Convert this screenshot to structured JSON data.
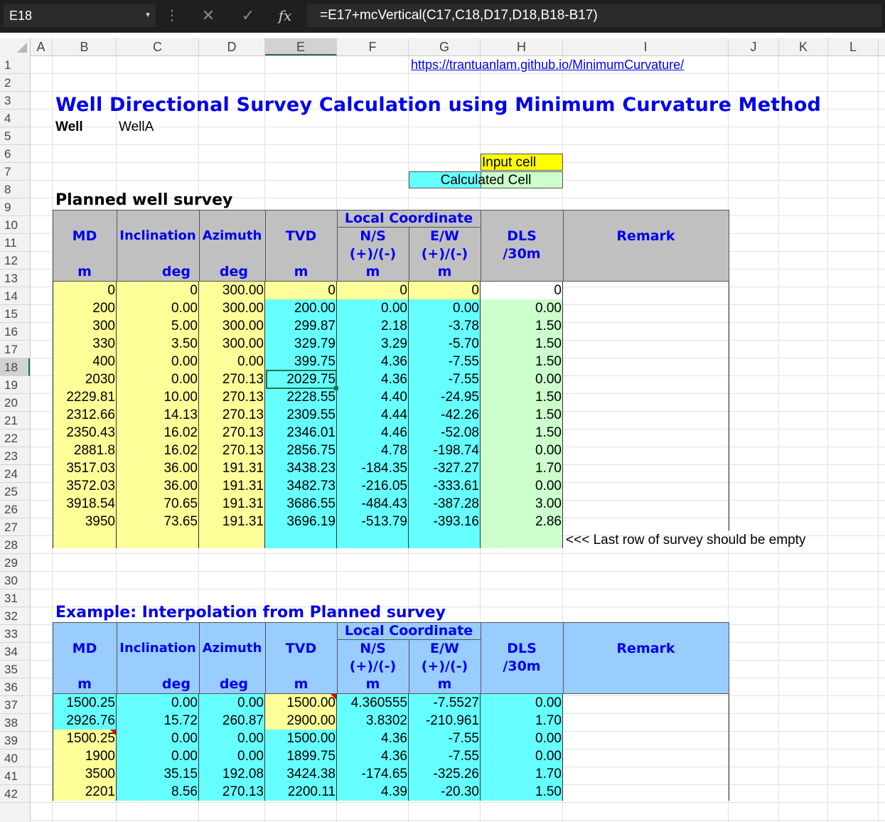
{
  "formula_bar": {
    "name_box": "E18",
    "formula": "=E17+mcVertical(C17,C18,D17,D18,B18-B17)",
    "cancel_icon": "✕",
    "enter_icon": "✓",
    "fx_label": "fx"
  },
  "columns": [
    "A",
    "B",
    "C",
    "D",
    "E",
    "F",
    "G",
    "H",
    "I",
    "J",
    "K",
    "L"
  ],
  "rows": [
    "1",
    "2",
    "3",
    "4",
    "5",
    "6",
    "7",
    "8",
    "9",
    "10",
    "11",
    "12",
    "13",
    "14",
    "15",
    "16",
    "17",
    "18",
    "19",
    "20",
    "21",
    "22",
    "23",
    "24",
    "25",
    "26",
    "27",
    "28",
    "29",
    "30",
    "31",
    "32",
    "33",
    "34",
    "35",
    "36",
    "37",
    "38",
    "39",
    "40",
    "41",
    "42"
  ],
  "link": "https://trantuanlam.github.io/MinimumCurvature/",
  "title": "Well Directional Survey Calculation using Minimum Curvature Method",
  "well": {
    "label": "Well",
    "value": "WellA"
  },
  "legend": {
    "input": "Input cell",
    "calculated": "Calculated Cell"
  },
  "planned": {
    "heading": "Planned well survey",
    "headers": {
      "md": "MD",
      "inc": "Inclination",
      "azi": "Azimuth",
      "tvd": "TVD",
      "local": "Local Coordinate",
      "ns": "N/S",
      "ns_sign": "(+)/(-)",
      "ew": "E/W",
      "ew_sign": "(+)/(-)",
      "dls": "DLS",
      "dls_unit": "/30m",
      "remark": "Remark",
      "u_md": "m",
      "u_inc": "deg",
      "u_azi": "deg",
      "u_tvd": "m",
      "u_ns": "m",
      "u_ew": "m"
    },
    "rows": [
      [
        "0",
        "0",
        "300.00",
        "0",
        "0",
        "0",
        "0"
      ],
      [
        "200",
        "0.00",
        "300.00",
        "200.00",
        "0.00",
        "0.00",
        "0.00"
      ],
      [
        "300",
        "5.00",
        "300.00",
        "299.87",
        "2.18",
        "-3.78",
        "1.50"
      ],
      [
        "330",
        "3.50",
        "300.00",
        "329.79",
        "3.29",
        "-5.70",
        "1.50"
      ],
      [
        "400",
        "0.00",
        "0.00",
        "399.75",
        "4.36",
        "-7.55",
        "1.50"
      ],
      [
        "2030",
        "0.00",
        "270.13",
        "2029.75",
        "4.36",
        "-7.55",
        "0.00"
      ],
      [
        "2229.81",
        "10.00",
        "270.13",
        "2228.55",
        "4.40",
        "-24.95",
        "1.50"
      ],
      [
        "2312.66",
        "14.13",
        "270.13",
        "2309.55",
        "4.44",
        "-42.26",
        "1.50"
      ],
      [
        "2350.43",
        "16.02",
        "270.13",
        "2346.01",
        "4.46",
        "-52.08",
        "1.50"
      ],
      [
        "2881.8",
        "16.02",
        "270.13",
        "2856.75",
        "4.78",
        "-198.74",
        "0.00"
      ],
      [
        "3517.03",
        "36.00",
        "191.31",
        "3438.23",
        "-184.35",
        "-327.27",
        "1.70"
      ],
      [
        "3572.03",
        "36.00",
        "191.31",
        "3482.73",
        "-216.05",
        "-333.61",
        "0.00"
      ],
      [
        "3918.54",
        "70.65",
        "191.31",
        "3686.55",
        "-484.43",
        "-387.28",
        "3.00"
      ],
      [
        "3950",
        "73.65",
        "191.31",
        "3696.19",
        "-513.79",
        "-393.16",
        "2.86"
      ]
    ],
    "note": "<<< Last row of survey should be empty"
  },
  "example": {
    "heading": "Example: Interpolation from Planned survey",
    "rows": [
      [
        "1500.25",
        "0.00",
        "0.00",
        "1500.00",
        "4.360555",
        "-7.5527",
        "0.00"
      ],
      [
        "2926.76",
        "15.72",
        "260.87",
        "2900.00",
        "3.8302",
        "-210.961",
        "1.70"
      ],
      [
        "1500.25",
        "0.00",
        "0.00",
        "1500.00",
        "4.36",
        "-7.55",
        "0.00"
      ],
      [
        "1900",
        "0.00",
        "0.00",
        "1899.75",
        "4.36",
        "-7.55",
        "0.00"
      ],
      [
        "3500",
        "35.15",
        "192.08",
        "3424.38",
        "-174.65",
        "-325.26",
        "1.70"
      ],
      [
        "2201",
        "8.56",
        "270.13",
        "2200.11",
        "4.39",
        "-20.30",
        "1.50"
      ]
    ]
  },
  "colors": {
    "input": "#ffff99",
    "calculated": "#66ffff",
    "dls": "#ccffcc",
    "header_grey": "#c0c0c0",
    "header_blue": "#99ccff",
    "title_blue": "#0000ee"
  }
}
